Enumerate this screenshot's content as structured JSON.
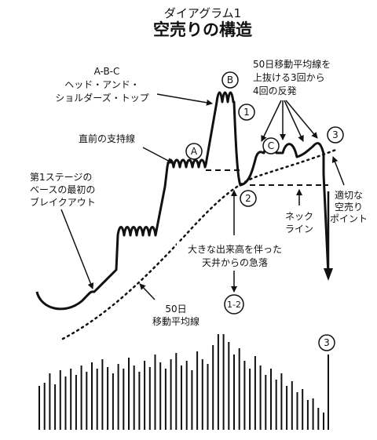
{
  "header": {
    "subtitle": "ダイアグラム1",
    "title": "空売りの構造"
  },
  "labels": {
    "abc_pattern": [
      "A-B-C",
      "ヘッド・アンド・",
      "ショルダーズ・トップ"
    ],
    "ma_cross": [
      "50日移動平均線を",
      "上抜ける3回から",
      "4回の反発"
    ],
    "prior_support": "直前の支持線",
    "first_stage": [
      "第1ステージの",
      "ベースの最初の",
      "ブレイクアウト"
    ],
    "neckline": [
      "ネック",
      "ライン"
    ],
    "short_point": [
      "適切な",
      "空売り",
      "ポイント"
    ],
    "big_drop": [
      "大きな出来高を伴った",
      "天井からの急落"
    ],
    "ma50": [
      "50日",
      "移動平均線"
    ]
  },
  "markers": {
    "A": "A",
    "B": "B",
    "C": "C",
    "m1": "1",
    "m2": "2",
    "m3": "3",
    "m12": "1-2",
    "m3v": "3"
  },
  "colors": {
    "ink": "#111111",
    "background": "#ffffff"
  }
}
